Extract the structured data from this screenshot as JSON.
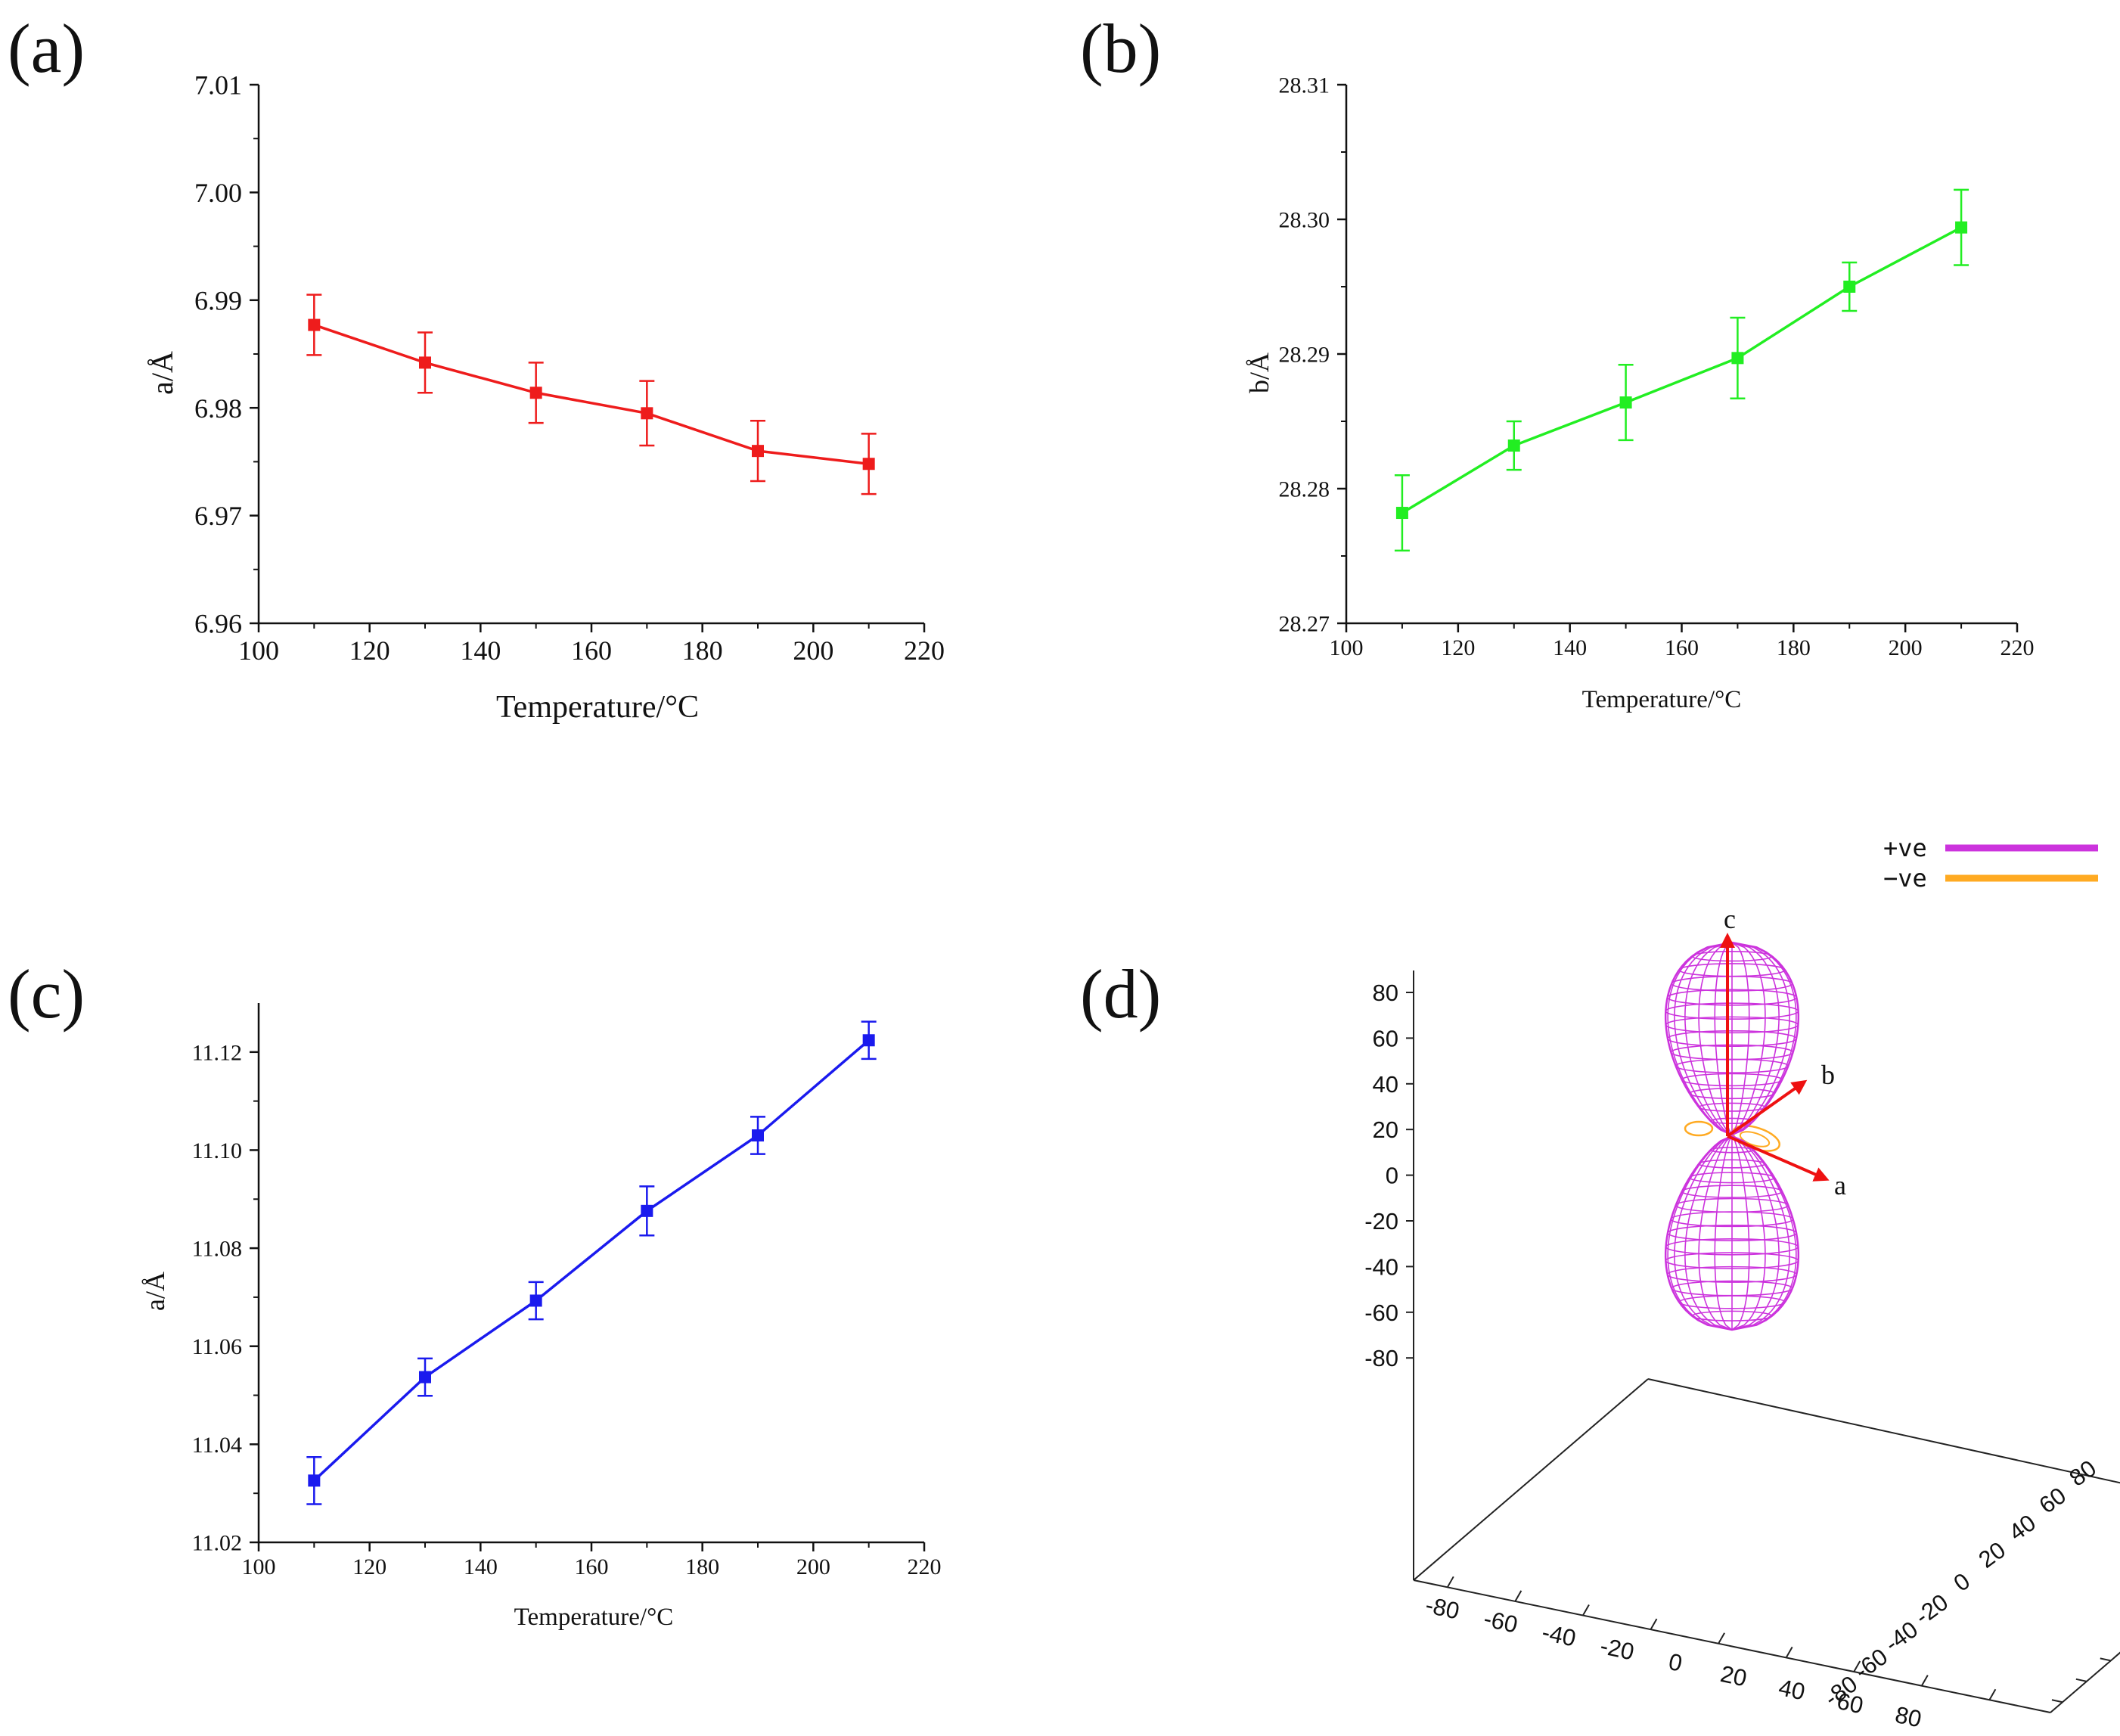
{
  "chart_data": [
    {
      "panel_label": "(a)",
      "type": "line",
      "color": "#ee1c1c",
      "x": [
        110,
        130,
        150,
        170,
        190,
        210
      ],
      "y": [
        6.9877,
        6.9842,
        6.9814,
        6.9795,
        6.976,
        6.9748
      ],
      "err": [
        0.0028,
        0.0028,
        0.0028,
        0.003,
        0.0028,
        0.0028
      ],
      "xlabel": "Temperature/°C",
      "ylabel": "a/Å",
      "xlim": [
        100,
        220
      ],
      "ylim": [
        6.96,
        7.01
      ],
      "xticks": [
        "100",
        "120",
        "140",
        "160",
        "180",
        "200",
        "220"
      ],
      "yticks": [
        "6.96",
        "6.97",
        "6.98",
        "6.99",
        "7.00",
        "7.01"
      ]
    },
    {
      "panel_label": "(b)",
      "type": "line",
      "color": "#22ee22",
      "x": [
        110,
        130,
        150,
        170,
        190,
        210
      ],
      "y": [
        28.2782,
        28.2832,
        28.2864,
        28.2897,
        28.295,
        28.2994
      ],
      "err": [
        0.0028,
        0.0018,
        0.0028,
        0.003,
        0.0018,
        0.0028
      ],
      "xlabel": "Temperature/°C",
      "ylabel": "b/Å",
      "xlim": [
        100,
        220
      ],
      "ylim": [
        28.27,
        28.31
      ],
      "xticks": [
        "100",
        "120",
        "140",
        "160",
        "180",
        "200",
        "220"
      ],
      "yticks": [
        "28.27",
        "28.28",
        "28.29",
        "28.30",
        "28.31"
      ]
    },
    {
      "panel_label": "(c)",
      "type": "line",
      "color": "#1a1aee",
      "x": [
        110,
        130,
        150,
        170,
        190,
        210
      ],
      "y": [
        11.0326,
        11.0537,
        11.0693,
        11.0876,
        11.103,
        11.1224
      ],
      "err": [
        0.0048,
        0.0038,
        0.0038,
        0.005,
        0.0038,
        0.0038
      ],
      "xlabel": "Temperature/°C",
      "ylabel": "a/Å",
      "xlim": [
        100,
        220
      ],
      "ylim": [
        11.02,
        11.13
      ],
      "xticks": [
        "100",
        "120",
        "140",
        "160",
        "180",
        "200",
        "220"
      ],
      "yticks": [
        "11.02",
        "11.04",
        "11.06",
        "11.08",
        "11.10",
        "11.12"
      ]
    },
    {
      "panel_label": "(d)",
      "type": "surface3d",
      "legend": [
        {
          "label": "+ve",
          "color": "#cc33dd"
        },
        {
          "label": "−ve",
          "color": "#ffaa22"
        }
      ],
      "z_ticks": [
        "80",
        "60",
        "40",
        "20",
        "0",
        "-20",
        "-40",
        "-60",
        "-80"
      ],
      "x_ticks": [
        "-80",
        "-60",
        "-40",
        "-20",
        "0",
        "20",
        "40",
        "60",
        "80"
      ],
      "y_ticks": [
        "-80",
        "-60",
        "-40",
        "-20",
        "0",
        "20",
        "40",
        "60",
        "80"
      ],
      "axis_labels": {
        "a": "a",
        "b": "b",
        "c": "c"
      },
      "arrow_color": "#ee1111"
    }
  ]
}
